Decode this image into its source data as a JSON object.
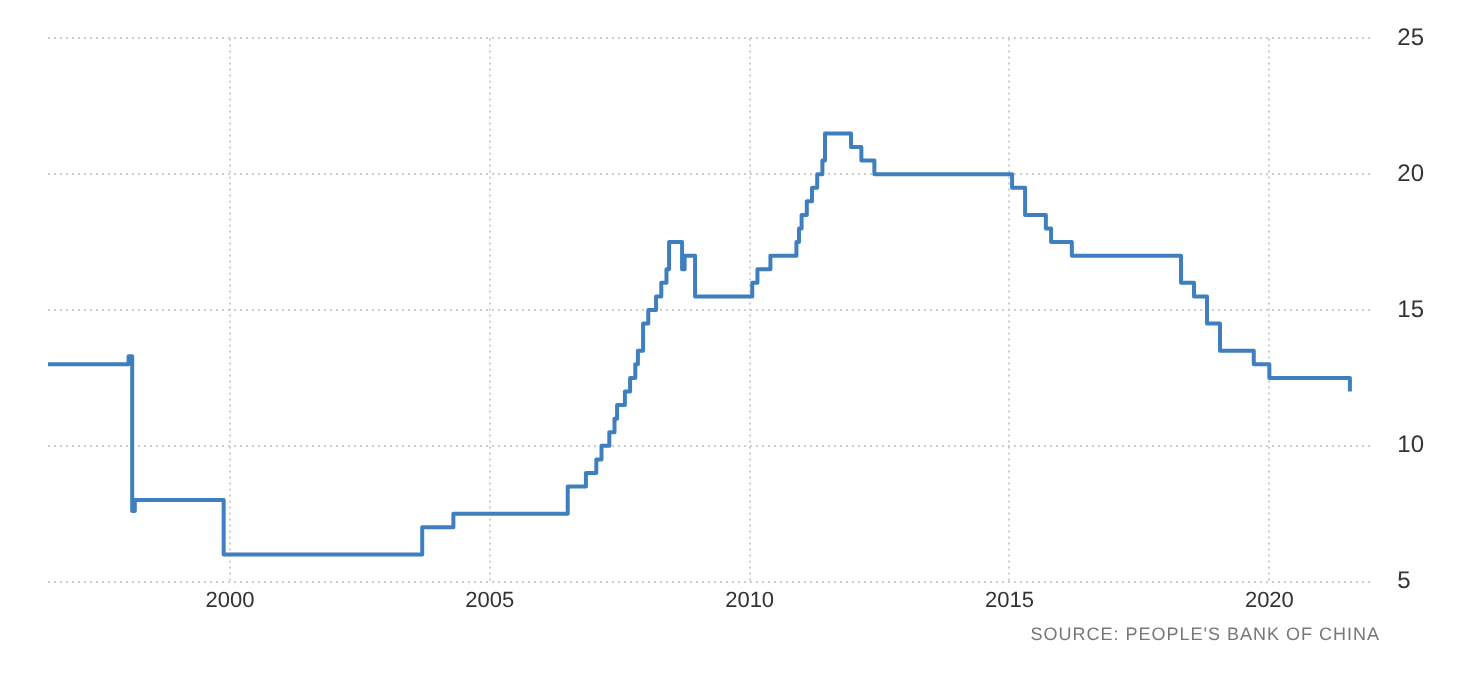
{
  "chart_data": {
    "type": "step",
    "x": [
      1996.5,
      1998.0,
      1998.05,
      1998.12,
      1998.17,
      1999.85,
      1999.88,
      2003.7,
      2004.3,
      2006.5,
      2006.6,
      2006.85,
      2007.05,
      2007.15,
      2007.3,
      2007.4,
      2007.45,
      2007.6,
      2007.7,
      2007.8,
      2007.85,
      2007.95,
      2008.05,
      2008.2,
      2008.3,
      2008.4,
      2008.45,
      2008.7,
      2008.75,
      2008.85,
      2008.95,
      2010.05,
      2010.15,
      2010.4,
      2010.9,
      2010.95,
      2011.0,
      2011.1,
      2011.2,
      2011.3,
      2011.4,
      2011.45,
      2011.95,
      2012.15,
      2012.4,
      2015.05,
      2015.3,
      2015.7,
      2015.8,
      2016.2,
      2018.3,
      2018.55,
      2018.8,
      2019.05,
      2019.7,
      2020.0,
      2021.55
    ],
    "series": [
      {
        "color": "#3f7fbf",
        "values": [
          13,
          13,
          13.3,
          7.6,
          8,
          8,
          6,
          7,
          7.5,
          8.5,
          8.5,
          9,
          9.5,
          10,
          10.5,
          11,
          11.5,
          12,
          12.5,
          13,
          13.5,
          14.5,
          15,
          15.5,
          16,
          16.5,
          17.5,
          16.5,
          17,
          17,
          15.5,
          16,
          16.5,
          17,
          17.5,
          18,
          18.5,
          19,
          19.5,
          20,
          20.5,
          21.5,
          21,
          20.5,
          20,
          19.5,
          18.5,
          18,
          17.5,
          17,
          16,
          15.5,
          14.5,
          13.5,
          13,
          12.5,
          12
        ]
      }
    ],
    "xlim": [
      1996.5,
      2022
    ],
    "xticks": [
      2000,
      2005,
      2010,
      2015,
      2020
    ],
    "ylim": [
      5,
      25
    ],
    "yticks": [
      5,
      10,
      15,
      20,
      25
    ],
    "grid": true,
    "legend": false,
    "annotations": [
      "SOURCE: PEOPLE'S BANK OF CHINA"
    ]
  }
}
